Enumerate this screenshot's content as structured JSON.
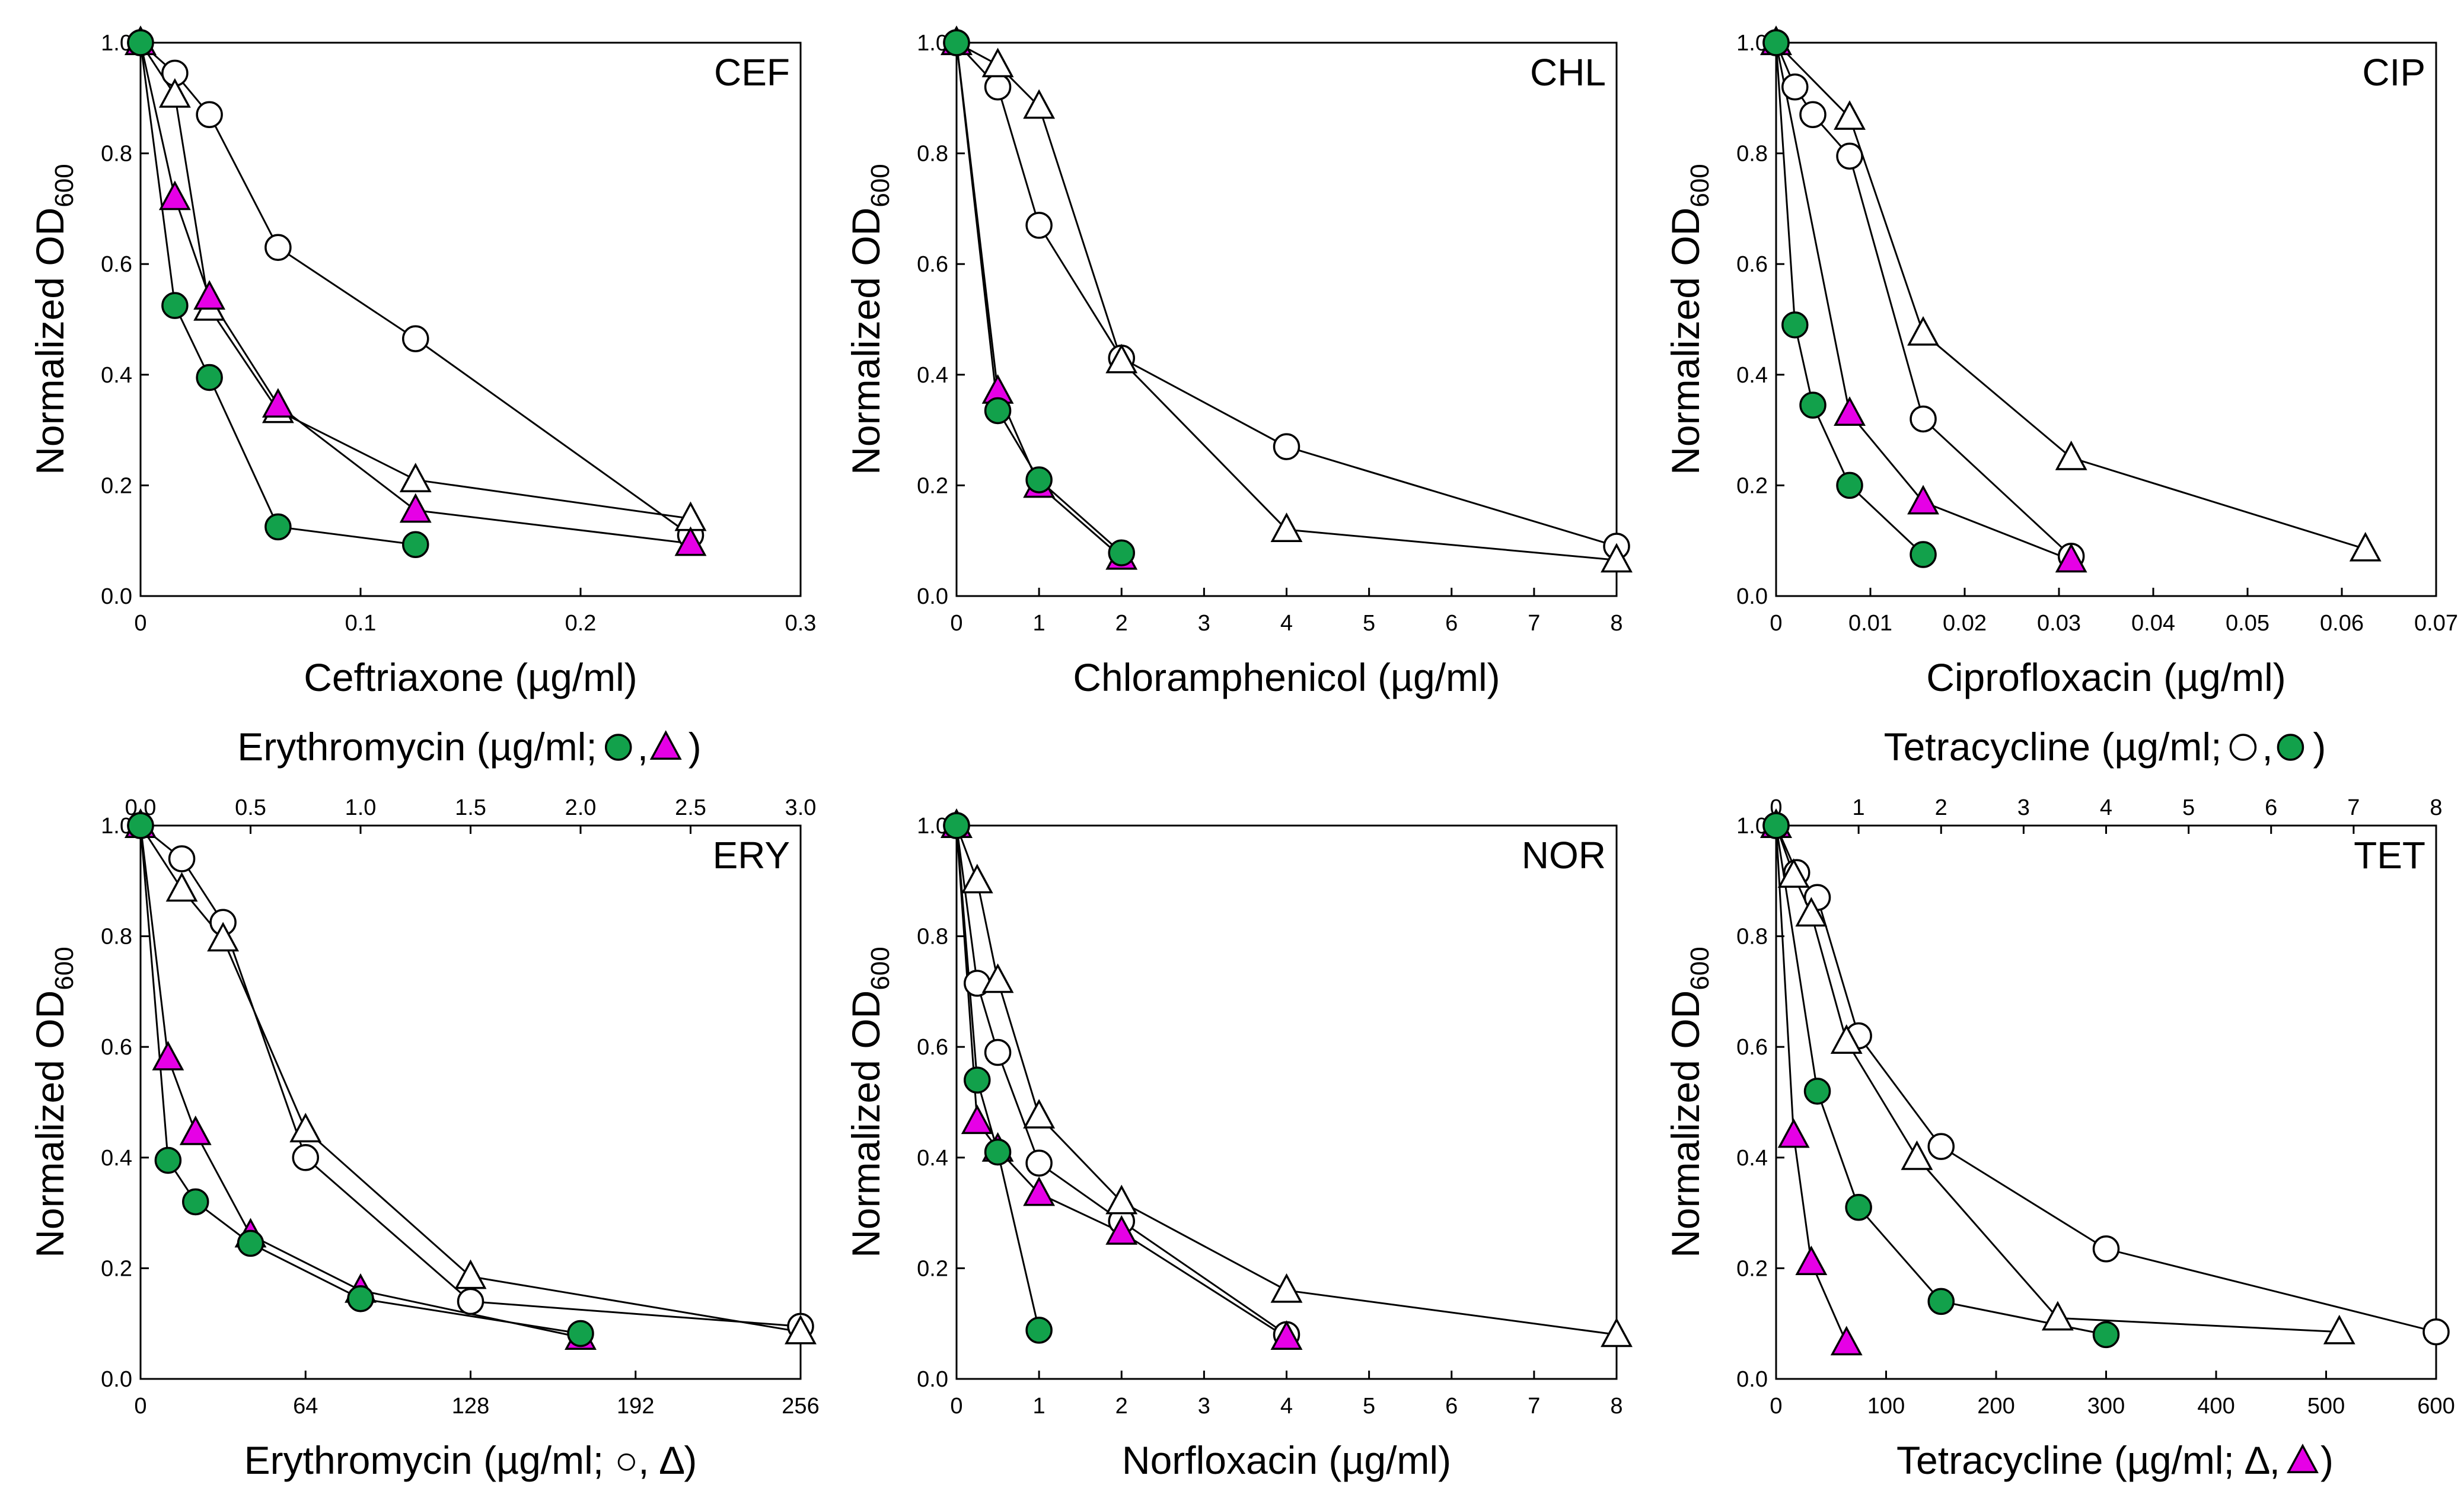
{
  "chart_data": [
    {
      "type": "line",
      "panel_label": "CEF",
      "xlabel": "Ceftriaxone (µg/ml)",
      "ylabel": "Normalized OD",
      "ylabel_sub": "600",
      "xlim": [
        0,
        0.3
      ],
      "ylim": [
        0,
        1.0
      ],
      "xticks": [
        0,
        0.1,
        0.2,
        0.3
      ],
      "xtick_labels": [
        "0",
        "0.1",
        "0.2",
        "0.3"
      ],
      "yticks": [
        0,
        0.2,
        0.4,
        0.6,
        0.8,
        1.0
      ],
      "ytick_labels": [
        "0.0",
        "0.2",
        "0.4",
        "0.6",
        "0.8",
        "1.0"
      ],
      "series": [
        {
          "name": "open circle",
          "marker": "circle",
          "color": "#ffffff",
          "axis": "bottom",
          "x": [
            0,
            0.0156,
            0.0313,
            0.0625,
            0.125,
            0.25
          ],
          "y": [
            1.0,
            0.945,
            0.87,
            0.63,
            0.465,
            0.11
          ]
        },
        {
          "name": "open triangle",
          "marker": "triangle",
          "color": "#ffffff",
          "axis": "bottom",
          "x": [
            0,
            0.0156,
            0.0313,
            0.0625,
            0.125,
            0.25
          ],
          "y": [
            1.0,
            0.905,
            0.52,
            0.335,
            0.21,
            0.14
          ]
        },
        {
          "name": "magenta triangle",
          "marker": "triangle",
          "color": "#e600e6",
          "axis": "bottom",
          "x": [
            0,
            0.0156,
            0.0313,
            0.0625,
            0.125,
            0.25
          ],
          "y": [
            1.0,
            0.72,
            0.54,
            0.345,
            0.155,
            0.095
          ]
        },
        {
          "name": "green circle",
          "marker": "circle",
          "color": "#12a14b",
          "axis": "bottom",
          "x": [
            0,
            0.0156,
            0.0313,
            0.0625,
            0.125
          ],
          "y": [
            1.0,
            0.525,
            0.395,
            0.125,
            0.093
          ]
        }
      ]
    },
    {
      "type": "line",
      "panel_label": "CHL",
      "xlabel": "Chloramphenicol (µg/ml)",
      "ylabel": "Normalized OD",
      "ylabel_sub": "600",
      "xlim": [
        0,
        8
      ],
      "ylim": [
        0,
        1.0
      ],
      "xticks": [
        0,
        1,
        2,
        3,
        4,
        5,
        6,
        7,
        8
      ],
      "xtick_labels": [
        "0",
        "1",
        "2",
        "3",
        "4",
        "5",
        "6",
        "7",
        "8"
      ],
      "yticks": [
        0,
        0.2,
        0.4,
        0.6,
        0.8,
        1.0
      ],
      "ytick_labels": [
        "0.0",
        "0.2",
        "0.4",
        "0.6",
        "0.8",
        "1.0"
      ],
      "series": [
        {
          "name": "open circle",
          "marker": "circle",
          "color": "#ffffff",
          "axis": "bottom",
          "x": [
            0,
            0.5,
            1,
            2,
            4,
            8
          ],
          "y": [
            1.0,
            0.92,
            0.67,
            0.43,
            0.27,
            0.09
          ]
        },
        {
          "name": "open triangle",
          "marker": "triangle",
          "color": "#ffffff",
          "axis": "bottom",
          "x": [
            0,
            0.5,
            1,
            2,
            4,
            8
          ],
          "y": [
            1.0,
            0.96,
            0.885,
            0.425,
            0.12,
            0.065
          ]
        },
        {
          "name": "magenta triangle",
          "marker": "triangle",
          "color": "#e600e6",
          "axis": "bottom",
          "x": [
            0,
            0.5,
            1,
            2
          ],
          "y": [
            1.0,
            0.37,
            0.2,
            0.07
          ]
        },
        {
          "name": "green circle",
          "marker": "circle",
          "color": "#12a14b",
          "axis": "bottom",
          "x": [
            0,
            0.5,
            1,
            2
          ],
          "y": [
            1.0,
            0.335,
            0.21,
            0.078
          ]
        }
      ]
    },
    {
      "type": "line",
      "panel_label": "CIP",
      "xlabel": "Ciprofloxacin (µg/ml)",
      "ylabel": "Normalized OD",
      "ylabel_sub": "600",
      "xlim": [
        0,
        0.07
      ],
      "ylim": [
        0,
        1.0
      ],
      "xticks": [
        0,
        0.01,
        0.02,
        0.03,
        0.04,
        0.05,
        0.06,
        0.07
      ],
      "xtick_labels": [
        "0",
        "0.01",
        "0.02",
        "0.03",
        "0.04",
        "0.05",
        "0.06",
        "0.07"
      ],
      "yticks": [
        0,
        0.2,
        0.4,
        0.6,
        0.8,
        1.0
      ],
      "ytick_labels": [
        "0.0",
        "0.2",
        "0.4",
        "0.6",
        "0.8",
        "1.0"
      ],
      "series": [
        {
          "name": "open circle",
          "marker": "circle",
          "color": "#ffffff",
          "axis": "bottom",
          "x": [
            0,
            0.002,
            0.0039,
            0.0078,
            0.0156,
            0.0313
          ],
          "y": [
            1.0,
            0.92,
            0.87,
            0.795,
            0.32,
            0.072
          ]
        },
        {
          "name": "open triangle",
          "marker": "triangle",
          "color": "#ffffff",
          "axis": "bottom",
          "x": [
            0,
            0.0078,
            0.0156,
            0.0313,
            0.0625
          ],
          "y": [
            1.0,
            0.865,
            0.475,
            0.25,
            0.085
          ]
        },
        {
          "name": "magenta triangle",
          "marker": "triangle",
          "color": "#e600e6",
          "axis": "bottom",
          "x": [
            0,
            0.0078,
            0.0156,
            0.0313
          ],
          "y": [
            1.0,
            0.33,
            0.17,
            0.065
          ]
        },
        {
          "name": "green circle",
          "marker": "circle",
          "color": "#12a14b",
          "axis": "bottom",
          "x": [
            0,
            0.002,
            0.0039,
            0.0078,
            0.0156
          ],
          "y": [
            1.0,
            0.49,
            0.345,
            0.2,
            0.075
          ]
        }
      ]
    },
    {
      "type": "line",
      "panel_label": "ERY",
      "xlabel": "Erythromycin (µg/ml; ○, ∆)",
      "x2label_prefix": "Erythromycin (µg/ml; ",
      "x2label_suffix": ")",
      "x2label_markers": [
        "green circle",
        "magenta triangle"
      ],
      "ylabel": "Normalized OD",
      "ylabel_sub": "600",
      "xlim": [
        0,
        256
      ],
      "x2lim": [
        0,
        3.0
      ],
      "ylim": [
        0,
        1.0
      ],
      "xticks": [
        0,
        64,
        128,
        192,
        256
      ],
      "xtick_labels": [
        "0",
        "64",
        "128",
        "192",
        "256"
      ],
      "x2ticks": [
        0,
        0.5,
        1.0,
        1.5,
        2.0,
        2.5,
        3.0
      ],
      "x2tick_labels": [
        "0.0",
        "0.5",
        "1.0",
        "1.5",
        "2.0",
        "2.5",
        "3.0"
      ],
      "yticks": [
        0,
        0.2,
        0.4,
        0.6,
        0.8,
        1.0
      ],
      "ytick_labels": [
        "0.0",
        "0.2",
        "0.4",
        "0.6",
        "0.8",
        "1.0"
      ],
      "series": [
        {
          "name": "open circle",
          "marker": "circle",
          "color": "#ffffff",
          "axis": "bottom",
          "x": [
            0,
            16,
            32,
            64,
            128,
            256
          ],
          "y": [
            1.0,
            0.94,
            0.825,
            0.4,
            0.14,
            0.095
          ]
        },
        {
          "name": "open triangle",
          "marker": "triangle",
          "color": "#ffffff",
          "axis": "bottom",
          "x": [
            0,
            16,
            32,
            64,
            128,
            256
          ],
          "y": [
            1.0,
            0.885,
            0.795,
            0.45,
            0.185,
            0.085
          ]
        },
        {
          "name": "magenta triangle",
          "marker": "triangle",
          "color": "#e600e6",
          "axis": "top",
          "x": [
            0,
            0.125,
            0.25,
            0.5,
            1.0,
            2.0
          ],
          "y": [
            1.0,
            0.58,
            0.445,
            0.26,
            0.16,
            0.075
          ]
        },
        {
          "name": "green circle",
          "marker": "circle",
          "color": "#12a14b",
          "axis": "top",
          "x": [
            0,
            0.125,
            0.25,
            0.5,
            1.0,
            2.0
          ],
          "y": [
            1.0,
            0.395,
            0.32,
            0.245,
            0.145,
            0.082
          ]
        }
      ]
    },
    {
      "type": "line",
      "panel_label": "NOR",
      "xlabel": "Norfloxacin (µg/ml)",
      "ylabel": "Normalized OD",
      "ylabel_sub": "600",
      "xlim": [
        0,
        8
      ],
      "ylim": [
        0,
        1.0
      ],
      "xticks": [
        0,
        1,
        2,
        3,
        4,
        5,
        6,
        7,
        8
      ],
      "xtick_labels": [
        "0",
        "1",
        "2",
        "3",
        "4",
        "5",
        "6",
        "7",
        "8"
      ],
      "yticks": [
        0,
        0.2,
        0.4,
        0.6,
        0.8,
        1.0
      ],
      "ytick_labels": [
        "0.0",
        "0.2",
        "0.4",
        "0.6",
        "0.8",
        "1.0"
      ],
      "series": [
        {
          "name": "open circle",
          "marker": "circle",
          "color": "#ffffff",
          "axis": "bottom",
          "x": [
            0,
            0.25,
            0.5,
            1,
            2,
            4
          ],
          "y": [
            1.0,
            0.715,
            0.59,
            0.39,
            0.285,
            0.08
          ]
        },
        {
          "name": "open triangle",
          "marker": "triangle",
          "color": "#ffffff",
          "axis": "bottom",
          "x": [
            0,
            0.25,
            0.5,
            1,
            2,
            4,
            8
          ],
          "y": [
            1.0,
            0.9,
            0.72,
            0.475,
            0.32,
            0.16,
            0.08
          ]
        },
        {
          "name": "magenta triangle",
          "marker": "triangle",
          "color": "#e600e6",
          "axis": "bottom",
          "x": [
            0,
            0.25,
            0.5,
            1,
            2,
            4
          ],
          "y": [
            1.0,
            0.465,
            0.415,
            0.335,
            0.265,
            0.075
          ]
        },
        {
          "name": "green circle",
          "marker": "circle",
          "color": "#12a14b",
          "axis": "bottom",
          "x": [
            0,
            0.25,
            0.5,
            1
          ],
          "y": [
            1.0,
            0.54,
            0.41,
            0.088
          ]
        }
      ]
    },
    {
      "type": "line",
      "panel_label": "TET",
      "xlabel": "Tetracycline (µg/ml; ∆, ▲)",
      "xlabel_prefix": "Tetracycline (µg/ml; ∆, ",
      "xlabel_suffix": ")",
      "x2label_prefix": "Tetracycline (µg/ml; ",
      "x2label_suffix": ")",
      "x2label_markers": [
        "open circle",
        "green circle"
      ],
      "ylabel": "Normalized OD",
      "ylabel_sub": "600",
      "xlim": [
        0,
        600
      ],
      "x2lim": [
        0,
        8
      ],
      "ylim": [
        0,
        1.0
      ],
      "xticks": [
        0,
        100,
        200,
        300,
        400,
        500,
        600
      ],
      "xtick_labels": [
        "0",
        "100",
        "200",
        "300",
        "400",
        "500",
        "600"
      ],
      "x2ticks": [
        0,
        1,
        2,
        3,
        4,
        5,
        6,
        7,
        8
      ],
      "x2tick_labels": [
        "0",
        "1",
        "2",
        "3",
        "4",
        "5",
        "6",
        "7",
        "8"
      ],
      "yticks": [
        0,
        0.2,
        0.4,
        0.6,
        0.8,
        1.0
      ],
      "ytick_labels": [
        "0.0",
        "0.2",
        "0.4",
        "0.6",
        "0.8",
        "1.0"
      ],
      "series": [
        {
          "name": "open circle",
          "marker": "circle",
          "color": "#ffffff",
          "axis": "top",
          "x": [
            0,
            0.25,
            0.5,
            1,
            2,
            4,
            8
          ],
          "y": [
            1.0,
            0.915,
            0.87,
            0.62,
            0.42,
            0.235,
            0.085
          ]
        },
        {
          "name": "open triangle",
          "marker": "triangle",
          "color": "#ffffff",
          "axis": "bottom",
          "x": [
            0,
            16,
            32,
            64,
            128,
            256,
            512
          ],
          "y": [
            1.0,
            0.91,
            0.84,
            0.61,
            0.4,
            0.11,
            0.085
          ]
        },
        {
          "name": "magenta triangle",
          "marker": "triangle",
          "color": "#e600e6",
          "axis": "bottom",
          "x": [
            0,
            16,
            32,
            64
          ],
          "y": [
            1.0,
            0.44,
            0.21,
            0.065
          ]
        },
        {
          "name": "green circle",
          "marker": "circle",
          "color": "#12a14b",
          "axis": "top",
          "x": [
            0,
            0.5,
            1,
            2,
            4
          ],
          "y": [
            1.0,
            0.52,
            0.31,
            0.14,
            0.08
          ]
        }
      ]
    }
  ],
  "colors": {
    "green": "#12a14b",
    "magenta": "#e600e6",
    "axis": "#000000"
  }
}
